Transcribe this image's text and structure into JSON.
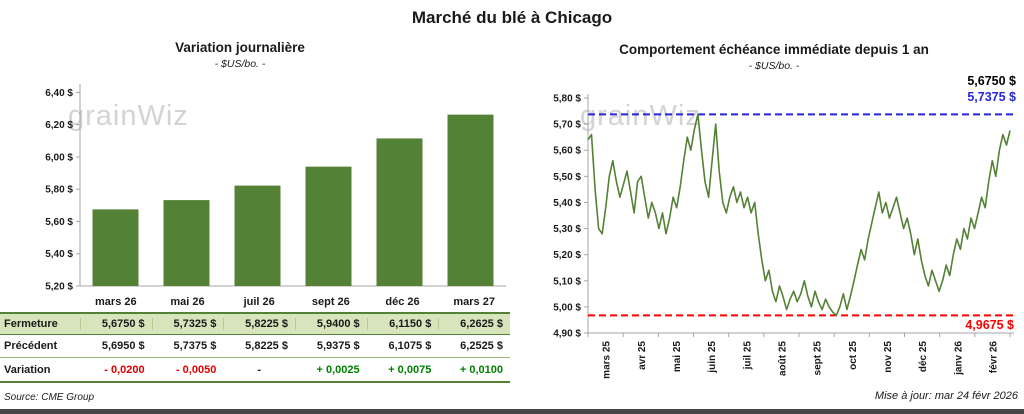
{
  "page": {
    "main_title": "Marché du blé à Chicago",
    "source": "Source: CME Group",
    "updated": "Mise à jour: mar 24 févr 2026",
    "watermark": "grainWiz"
  },
  "chart_data": [
    {
      "type": "bar",
      "title": "Variation journalière",
      "subtitle": "- $US/bo. -",
      "categories": [
        "mars 26",
        "mai 26",
        "juil 26",
        "sept 26",
        "déc 26",
        "mars 27"
      ],
      "values": [
        5.675,
        5.7325,
        5.8225,
        5.94,
        6.115,
        6.2625
      ],
      "ylim": [
        5.2,
        6.44
      ],
      "yticks": [
        5.2,
        5.4,
        5.6,
        5.8,
        6.0,
        6.2,
        6.4
      ],
      "ytick_labels": [
        "5,20 $",
        "5,40 $",
        "5,60 $",
        "5,80 $",
        "6,00 $",
        "6,20 $",
        "6,40 $"
      ],
      "bar_color": "#538135",
      "grid": false,
      "legend": "none"
    },
    {
      "type": "line",
      "title": "Comportement échéance immédiate depuis 1 an",
      "subtitle": "- $US/bo. -",
      "x_labels": [
        "mars 25",
        "avr 25",
        "mai 25",
        "juin 25",
        "juil 25",
        "août 25",
        "sept 25",
        "oct 25",
        "nov 25",
        "déc 25",
        "janv 26",
        "févr 26"
      ],
      "values": [
        5.64,
        5.66,
        5.45,
        5.3,
        5.28,
        5.38,
        5.5,
        5.56,
        5.48,
        5.42,
        5.47,
        5.52,
        5.44,
        5.36,
        5.48,
        5.5,
        5.42,
        5.34,
        5.4,
        5.36,
        5.3,
        5.36,
        5.28,
        5.34,
        5.42,
        5.38,
        5.46,
        5.56,
        5.65,
        5.6,
        5.68,
        5.7375,
        5.6,
        5.48,
        5.42,
        5.56,
        5.7,
        5.52,
        5.4,
        5.36,
        5.42,
        5.46,
        5.4,
        5.44,
        5.38,
        5.42,
        5.36,
        5.4,
        5.28,
        5.18,
        5.1,
        5.14,
        5.06,
        5.02,
        5.08,
        5.04,
        4.99,
        5.03,
        5.06,
        5.02,
        5.05,
        5.1,
        5.04,
        5.0,
        5.06,
        5.02,
        4.99,
        5.03,
        5.0,
        4.98,
        4.9675,
        5.0,
        5.05,
        4.99,
        5.04,
        5.1,
        5.16,
        5.22,
        5.18,
        5.26,
        5.32,
        5.38,
        5.44,
        5.36,
        5.4,
        5.34,
        5.38,
        5.42,
        5.36,
        5.3,
        5.34,
        5.28,
        5.2,
        5.26,
        5.18,
        5.12,
        5.08,
        5.14,
        5.1,
        5.06,
        5.1,
        5.16,
        5.12,
        5.2,
        5.26,
        5.22,
        5.3,
        5.26,
        5.34,
        5.3,
        5.36,
        5.42,
        5.38,
        5.48,
        5.56,
        5.5,
        5.6,
        5.66,
        5.62,
        5.675
      ],
      "ylim": [
        4.9,
        5.8
      ],
      "yticks": [
        4.9,
        5.0,
        5.1,
        5.2,
        5.3,
        5.4,
        5.5,
        5.6,
        5.7,
        5.8
      ],
      "ytick_labels": [
        "4,90 $",
        "5,00 $",
        "5,10 $",
        "5,20 $",
        "5,30 $",
        "5,40 $",
        "5,50 $",
        "5,60 $",
        "5,70 $",
        "5,80 $"
      ],
      "line_color": "#538135",
      "annotations": {
        "last_value_label": "5,6750 $",
        "max_line": {
          "value": 5.7375,
          "label": "5,7375 $",
          "color": "#2626d8"
        },
        "min_line": {
          "value": 4.9675,
          "label": "4,9675 $",
          "color": "#ff0000"
        }
      },
      "grid": false,
      "legend": "none"
    }
  ],
  "table": {
    "rows": [
      {
        "label": "Fermeture",
        "values": [
          "5,6750 $",
          "5,7325 $",
          "5,8225 $",
          "5,9400 $",
          "6,1150 $",
          "6,2625 $"
        ]
      },
      {
        "label": "Précédent",
        "values": [
          "5,6950 $",
          "5,7375 $",
          "5,8225 $",
          "5,9375 $",
          "6,1075 $",
          "6,2525 $"
        ]
      },
      {
        "label": "Variation",
        "values": [
          "- 0,0200",
          "- 0,0050",
          "-",
          "+ 0,0025",
          "+ 0,0075",
          "+ 0,0100"
        ],
        "value_colors": [
          "#e00000",
          "#e00000",
          "#1a1a1a",
          "#008000",
          "#008000",
          "#008000"
        ]
      }
    ]
  }
}
